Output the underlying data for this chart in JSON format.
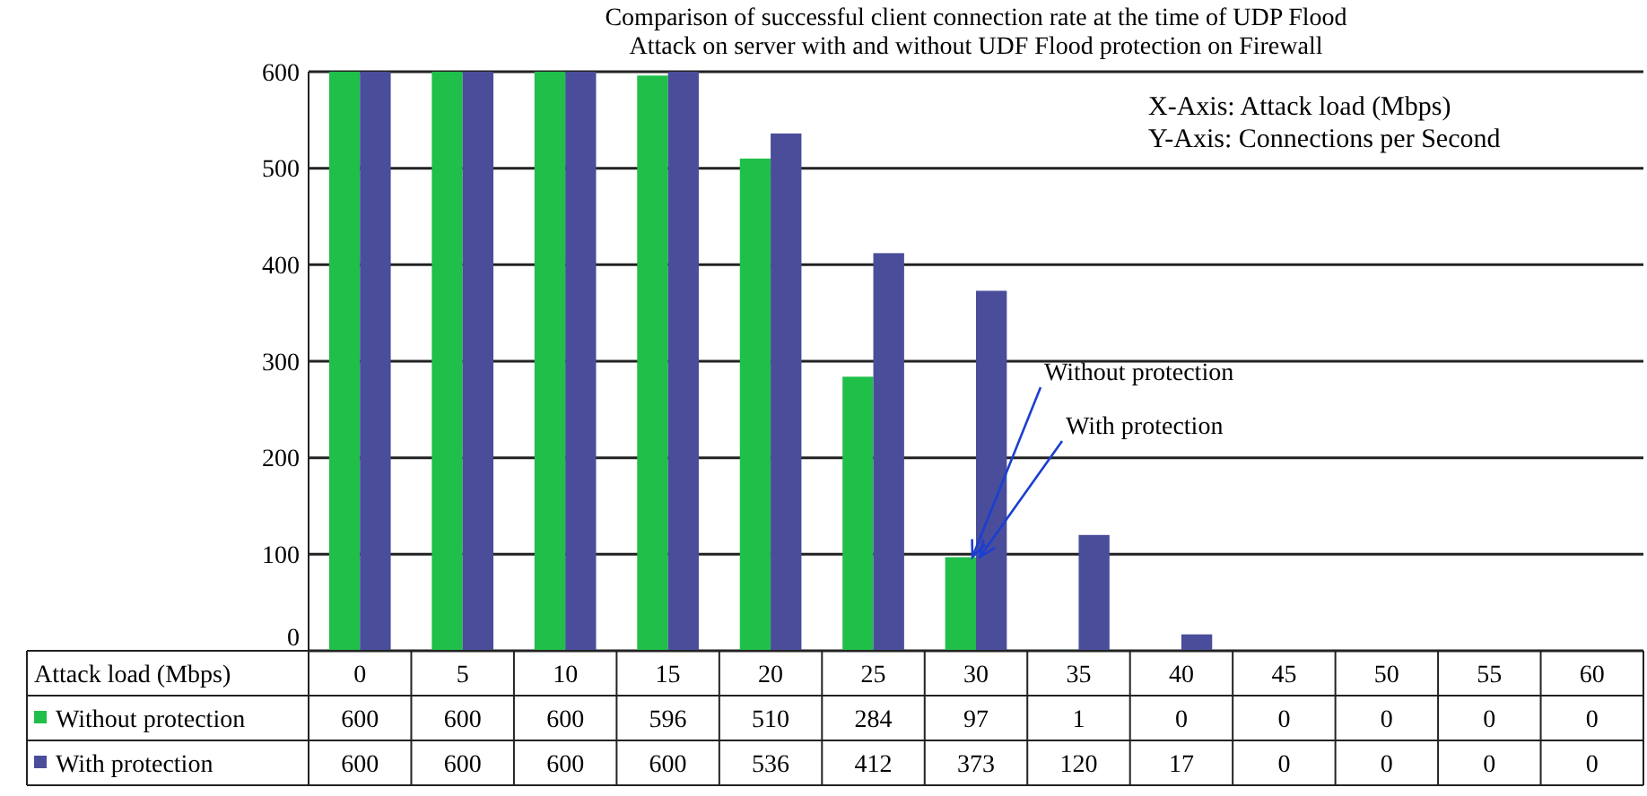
{
  "chart_data": {
    "type": "bar",
    "title": "Comparison of successful client connection rate at the time of UDP Flood\nAttack on server with and without UDF Flood protection on Firewall",
    "xlabel": "Attack load (Mbps)",
    "categories": [
      "0",
      "5",
      "10",
      "15",
      "20",
      "25",
      "30",
      "35",
      "40",
      "45",
      "50",
      "55",
      "60"
    ],
    "series": [
      {
        "name": "Without protection",
        "color": "#1fbf4a",
        "values": [
          600,
          600,
          600,
          596,
          510,
          284,
          97,
          1,
          0,
          0,
          0,
          0,
          0
        ]
      },
      {
        "name": "With protection",
        "color": "#4a4d9a",
        "values": [
          600,
          600,
          600,
          600,
          536,
          412,
          373,
          120,
          17,
          0,
          0,
          0,
          0
        ]
      }
    ],
    "ylim": [
      0,
      600
    ],
    "yticks": [
      0,
      100,
      200,
      300,
      400,
      500,
      600
    ],
    "grid": "y",
    "legend": "bottom",
    "data_labels": true,
    "annotations": [
      "X-Axis: Attack load (Mbps)",
      "Y-Axis: Connections per Second",
      {
        "text": "Without protection",
        "x": "30",
        "y": 97
      },
      {
        "text": "With protection",
        "x": "30",
        "y": 97
      }
    ]
  }
}
